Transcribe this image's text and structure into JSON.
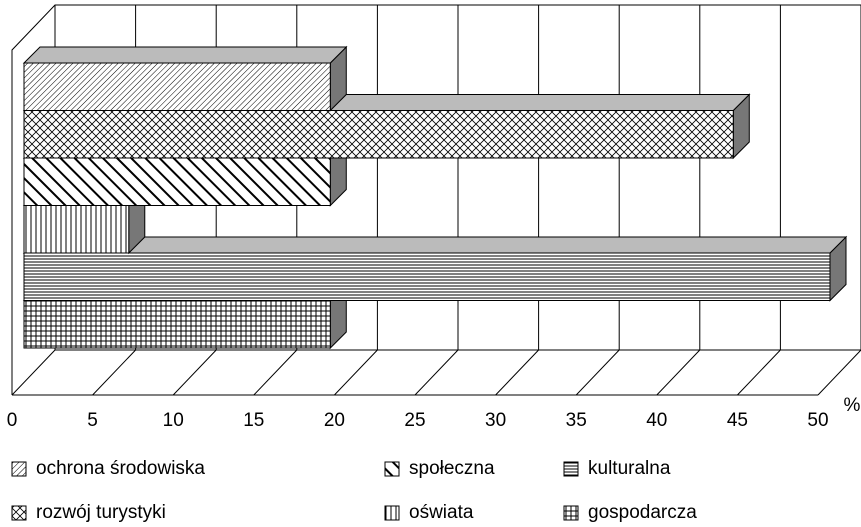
{
  "chart_data": {
    "type": "bar",
    "orientation": "horizontal",
    "x_label": "%",
    "xlim": [
      0,
      50
    ],
    "xticks": [
      0,
      5,
      10,
      15,
      20,
      25,
      30,
      35,
      40,
      45,
      50
    ],
    "grid": true,
    "series": [
      {
        "name": "ochrona środowiska",
        "color": "#000000",
        "pattern": "diagonal-fine",
        "values": [
          19
        ]
      },
      {
        "name": "rozwój turystyki",
        "color": "#000000",
        "pattern": "diamond",
        "values": [
          44
        ]
      },
      {
        "name": "społeczna",
        "color": "#000000",
        "pattern": "diagonal-wide",
        "values": [
          19
        ]
      },
      {
        "name": "oświata",
        "color": "#000000",
        "pattern": "vertical",
        "values": [
          6.5
        ]
      },
      {
        "name": "kulturalna",
        "color": "#000000",
        "pattern": "horizontal",
        "values": [
          50
        ]
      },
      {
        "name": "gospodarcza",
        "color": "#000000",
        "pattern": "grid",
        "values": [
          19
        ]
      }
    ]
  }
}
